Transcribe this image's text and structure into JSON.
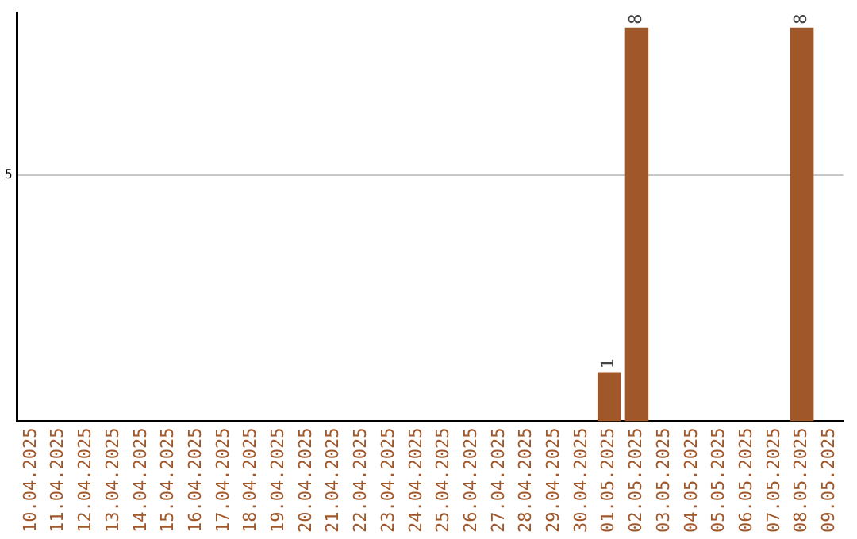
{
  "chart_data": {
    "type": "bar",
    "categories": [
      "10.04.2025",
      "11.04.2025",
      "12.04.2025",
      "13.04.2025",
      "14.04.2025",
      "15.04.2025",
      "16.04.2025",
      "17.04.2025",
      "18.04.2025",
      "19.04.2025",
      "20.04.2025",
      "21.04.2025",
      "22.04.2025",
      "23.04.2025",
      "24.04.2025",
      "25.04.2025",
      "26.04.2025",
      "27.04.2025",
      "28.04.2025",
      "29.04.2025",
      "30.04.2025",
      "01.05.2025",
      "02.05.2025",
      "03.05.2025",
      "04.05.2025",
      "05.05.2025",
      "06.05.2025",
      "07.05.2025",
      "08.05.2025",
      "09.05.2025"
    ],
    "values": [
      null,
      null,
      null,
      null,
      null,
      null,
      null,
      null,
      null,
      null,
      null,
      null,
      null,
      null,
      null,
      null,
      null,
      null,
      null,
      null,
      null,
      1,
      8,
      null,
      null,
      null,
      null,
      null,
      8,
      null
    ],
    "data_labels": true,
    "color": "#a0572a",
    "ylim": [
      0,
      8.3
    ],
    "yticks": [
      5
    ],
    "grid": "y",
    "legend": false
  }
}
